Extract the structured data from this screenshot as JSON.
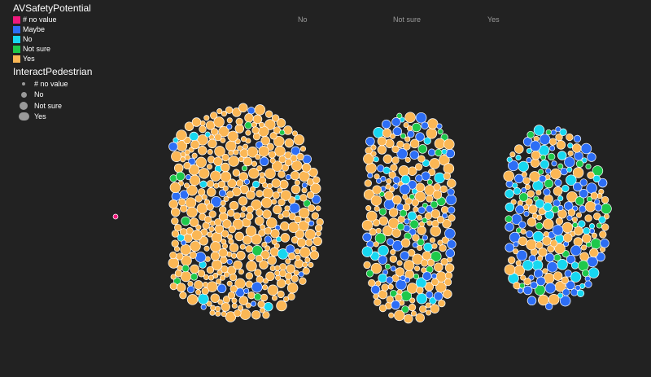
{
  "chart_data": {
    "type": "scatter",
    "color_legend": {
      "title": "AVSafetyPotential",
      "entries": [
        {
          "label": "# no value",
          "color": "#f0197d"
        },
        {
          "label": "Maybe",
          "color": "#2d6ef5"
        },
        {
          "label": "No",
          "color": "#17d7f0"
        },
        {
          "label": "Not sure",
          "color": "#1ec84b"
        },
        {
          "label": "Yes",
          "color": "#fbb755"
        }
      ]
    },
    "size_legend": {
      "title": "InteractPedestrian",
      "entries": [
        "# no value",
        "No",
        "Not sure",
        "Yes"
      ]
    },
    "columns": [
      "No",
      "Not sure",
      "Yes"
    ],
    "groups": [
      {
        "column": "# no value",
        "counts": {
          "# no value": 1,
          "Maybe": 0,
          "No": 0,
          "Not sure": 0,
          "Yes": 0
        }
      },
      {
        "column": "No",
        "counts": {
          "# no value": 0,
          "Maybe": 45,
          "No": 20,
          "Not sure": 15,
          "Yes": 480
        }
      },
      {
        "column": "Not sure",
        "counts": {
          "# no value": 0,
          "Maybe": 70,
          "No": 25,
          "Not sure": 35,
          "Yes": 180
        }
      },
      {
        "column": "Yes",
        "counts": {
          "# no value": 0,
          "Maybe": 100,
          "No": 50,
          "Not sure": 30,
          "Yes": 110
        }
      }
    ]
  }
}
